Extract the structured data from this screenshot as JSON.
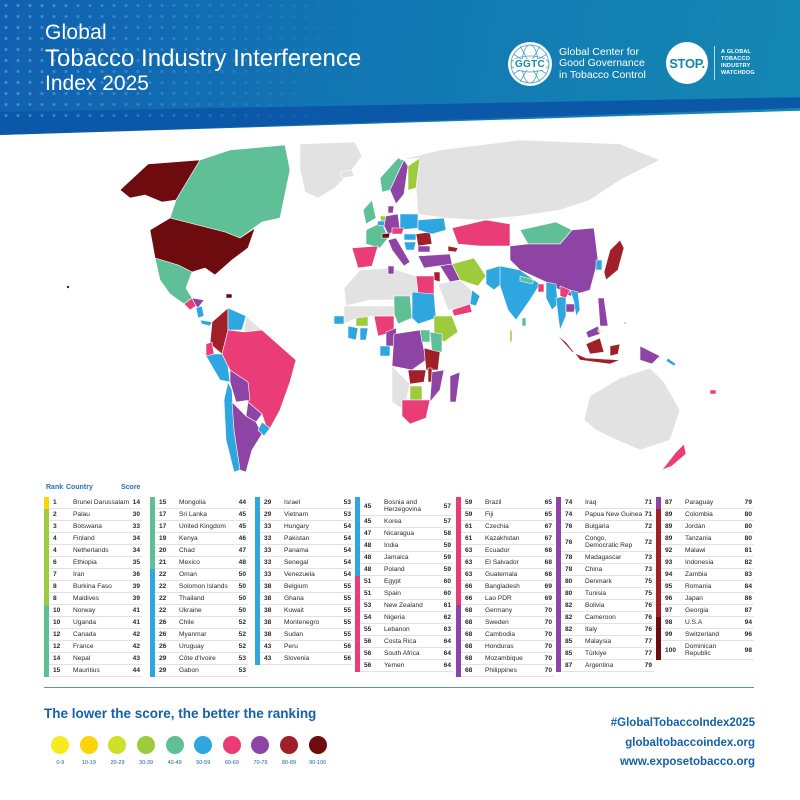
{
  "header": {
    "title_line1": "Global",
    "title_line2": "Tobacco Industry Interference",
    "title_line3": "Index 2025",
    "ggtc": {
      "logo_text": "GGTC",
      "name_line1": "Global Center for",
      "name_line2": "Good Governance",
      "name_line3": "in Tobacco Control"
    },
    "stop": {
      "logo_text": "STOP.",
      "tagline_line1": "A GLOBAL",
      "tagline_line2": "TOBACCO",
      "tagline_line3": "INDUSTRY",
      "tagline_line4": "WATCHDOG"
    }
  },
  "colors": {
    "0-9": "#f7ea1f",
    "10-19": "#fdd30a",
    "20-29": "#cde02a",
    "30-39": "#9ccb3b",
    "40-49": "#5fbf97",
    "50-59": "#2ea6e0",
    "60-69": "#ea3d78",
    "70-79": "#8e44a4",
    "80-89": "#a11f28",
    "90-100": "#6e0b0e",
    "no_data": "#e2e2e2"
  },
  "table": {
    "headers": {
      "rank": "Rank",
      "country": "Country",
      "score": "Score"
    },
    "columns": [
      [
        {
          "rank": "1",
          "country": "Brunei Darussalam",
          "score": "14",
          "band": "10-19"
        },
        {
          "rank": "2",
          "country": "Palau",
          "score": "30",
          "band": "30-39"
        },
        {
          "rank": "3",
          "country": "Botswana",
          "score": "33",
          "band": "30-39"
        },
        {
          "rank": "4",
          "country": "Finland",
          "score": "34",
          "band": "30-39"
        },
        {
          "rank": "4",
          "country": "Netherlands",
          "score": "34",
          "band": "30-39"
        },
        {
          "rank": "6",
          "country": "Ethiopia",
          "score": "35",
          "band": "30-39"
        },
        {
          "rank": "7",
          "country": "Iran",
          "score": "36",
          "band": "30-39"
        },
        {
          "rank": "8",
          "country": "Burkina Faso",
          "score": "39",
          "band": "30-39"
        },
        {
          "rank": "8",
          "country": "Maldives",
          "score": "39",
          "band": "30-39"
        },
        {
          "rank": "10",
          "country": "Norway",
          "score": "41",
          "band": "40-49"
        },
        {
          "rank": "10",
          "country": "Uganda",
          "score": "41",
          "band": "40-49"
        },
        {
          "rank": "12",
          "country": "Canada",
          "score": "42",
          "band": "40-49"
        },
        {
          "rank": "12",
          "country": "France",
          "score": "42",
          "band": "40-49"
        },
        {
          "rank": "14",
          "country": "Nepal",
          "score": "43",
          "band": "40-49"
        },
        {
          "rank": "15",
          "country": "Mauritius",
          "score": "44",
          "band": "40-49"
        }
      ],
      [
        {
          "rank": "15",
          "country": "Mongolia",
          "score": "44",
          "band": "40-49"
        },
        {
          "rank": "17",
          "country": "Sri Lanka",
          "score": "45",
          "band": "40-49"
        },
        {
          "rank": "17",
          "country": "United Kingdom",
          "score": "45",
          "band": "40-49"
        },
        {
          "rank": "19",
          "country": "Kenya",
          "score": "46",
          "band": "40-49"
        },
        {
          "rank": "20",
          "country": "Chad",
          "score": "47",
          "band": "40-49"
        },
        {
          "rank": "21",
          "country": "Mexico",
          "score": "48",
          "band": "40-49"
        },
        {
          "rank": "22",
          "country": "Oman",
          "score": "50",
          "band": "50-59"
        },
        {
          "rank": "22",
          "country": "Solomon Islands",
          "score": "50",
          "band": "50-59"
        },
        {
          "rank": "22",
          "country": "Thailand",
          "score": "50",
          "band": "50-59"
        },
        {
          "rank": "22",
          "country": "Ukraine",
          "score": "50",
          "band": "50-59"
        },
        {
          "rank": "26",
          "country": "Chile",
          "score": "52",
          "band": "50-59"
        },
        {
          "rank": "26",
          "country": "Myanmar",
          "score": "52",
          "band": "50-59"
        },
        {
          "rank": "26",
          "country": "Uruguay",
          "score": "52",
          "band": "50-59"
        },
        {
          "rank": "29",
          "country": "Côte d'Ivoire",
          "score": "53",
          "band": "50-59"
        },
        {
          "rank": "29",
          "country": "Gabon",
          "score": "53",
          "band": "50-59"
        }
      ],
      [
        {
          "rank": "29",
          "country": "Israel",
          "score": "53",
          "band": "50-59"
        },
        {
          "rank": "29",
          "country": "Vietnam",
          "score": "53",
          "band": "50-59"
        },
        {
          "rank": "33",
          "country": "Hungary",
          "score": "54",
          "band": "50-59"
        },
        {
          "rank": "33",
          "country": "Pakistan",
          "score": "54",
          "band": "50-59"
        },
        {
          "rank": "33",
          "country": "Panama",
          "score": "54",
          "band": "50-59"
        },
        {
          "rank": "33",
          "country": "Senegal",
          "score": "54",
          "band": "50-59"
        },
        {
          "rank": "33",
          "country": "Venezuela",
          "score": "54",
          "band": "50-59"
        },
        {
          "rank": "38",
          "country": "Belgium",
          "score": "55",
          "band": "50-59"
        },
        {
          "rank": "38",
          "country": "Ghana",
          "score": "55",
          "band": "50-59"
        },
        {
          "rank": "38",
          "country": "Kuwait",
          "score": "55",
          "band": "50-59"
        },
        {
          "rank": "38",
          "country": "Montenegro",
          "score": "55",
          "band": "50-59"
        },
        {
          "rank": "38",
          "country": "Sudan",
          "score": "55",
          "band": "50-59"
        },
        {
          "rank": "43",
          "country": "Peru",
          "score": "56",
          "band": "50-59"
        },
        {
          "rank": "43",
          "country": "Slovenia",
          "score": "56",
          "band": "50-59"
        }
      ],
      [
        {
          "rank": "45",
          "country": "Bosnia and Herzegovina",
          "score": "57",
          "band": "50-59",
          "tall": true
        },
        {
          "rank": "45",
          "country": "Korea",
          "score": "57",
          "band": "50-59"
        },
        {
          "rank": "47",
          "country": "Nicaragua",
          "score": "58",
          "band": "50-59"
        },
        {
          "rank": "48",
          "country": "India",
          "score": "59",
          "band": "50-59"
        },
        {
          "rank": "48",
          "country": "Jamaica",
          "score": "59",
          "band": "50-59"
        },
        {
          "rank": "48",
          "country": "Poland",
          "score": "59",
          "band": "50-59"
        },
        {
          "rank": "51",
          "country": "Egypt",
          "score": "60",
          "band": "60-69"
        },
        {
          "rank": "51",
          "country": "Spain",
          "score": "60",
          "band": "60-69"
        },
        {
          "rank": "53",
          "country": "New Zealand",
          "score": "61",
          "band": "60-69"
        },
        {
          "rank": "54",
          "country": "Nigeria",
          "score": "62",
          "band": "60-69"
        },
        {
          "rank": "55",
          "country": "Lebanon",
          "score": "63",
          "band": "60-69"
        },
        {
          "rank": "56",
          "country": "Costa Rica",
          "score": "64",
          "band": "60-69"
        },
        {
          "rank": "56",
          "country": "South Africa",
          "score": "64",
          "band": "60-69"
        },
        {
          "rank": "56",
          "country": "Yemen",
          "score": "64",
          "band": "60-69"
        }
      ],
      [
        {
          "rank": "59",
          "country": "Brazil",
          "score": "65",
          "band": "60-69"
        },
        {
          "rank": "59",
          "country": "Fiji",
          "score": "65",
          "band": "60-69"
        },
        {
          "rank": "61",
          "country": "Czechia",
          "score": "67",
          "band": "60-69"
        },
        {
          "rank": "61",
          "country": "Kazakhstan",
          "score": "67",
          "band": "60-69"
        },
        {
          "rank": "63",
          "country": "Ecuador",
          "score": "68",
          "band": "60-69"
        },
        {
          "rank": "63",
          "country": "El Salvador",
          "score": "68",
          "band": "60-69"
        },
        {
          "rank": "63",
          "country": "Guatemala",
          "score": "68",
          "band": "60-69"
        },
        {
          "rank": "66",
          "country": "Bangladesh",
          "score": "69",
          "band": "60-69"
        },
        {
          "rank": "66",
          "country": "Lao PDR",
          "score": "69",
          "band": "60-69"
        },
        {
          "rank": "68",
          "country": "Germany",
          "score": "70",
          "band": "70-79"
        },
        {
          "rank": "68",
          "country": "Sweden",
          "score": "70",
          "band": "70-79"
        },
        {
          "rank": "68",
          "country": "Cambodia",
          "score": "70",
          "band": "70-79"
        },
        {
          "rank": "68",
          "country": "Honduras",
          "score": "70",
          "band": "70-79"
        },
        {
          "rank": "68",
          "country": "Mozambique",
          "score": "70",
          "band": "70-79"
        },
        {
          "rank": "68",
          "country": "Philippines",
          "score": "70",
          "band": "70-79"
        }
      ],
      [
        {
          "rank": "74",
          "country": "Iraq",
          "score": "71",
          "band": "70-79"
        },
        {
          "rank": "74",
          "country": "Papua New Guinea",
          "score": "71",
          "band": "70-79"
        },
        {
          "rank": "76",
          "country": "Bulgaria",
          "score": "72",
          "band": "70-79"
        },
        {
          "rank": "76",
          "country": "Congo, Democratic Rep",
          "score": "72",
          "band": "70-79",
          "tall": true
        },
        {
          "rank": "78",
          "country": "Madagascar",
          "score": "73",
          "band": "70-79"
        },
        {
          "rank": "78",
          "country": "China",
          "score": "73",
          "band": "70-79"
        },
        {
          "rank": "80",
          "country": "Denmark",
          "score": "75",
          "band": "70-79"
        },
        {
          "rank": "80",
          "country": "Tunisia",
          "score": "75",
          "band": "70-79"
        },
        {
          "rank": "82",
          "country": "Bolivia",
          "score": "76",
          "band": "70-79"
        },
        {
          "rank": "82",
          "country": "Cameroon",
          "score": "76",
          "band": "70-79"
        },
        {
          "rank": "82",
          "country": "Italy",
          "score": "76",
          "band": "70-79"
        },
        {
          "rank": "85",
          "country": "Malaysia",
          "score": "77",
          "band": "70-79"
        },
        {
          "rank": "85",
          "country": "Türkiye",
          "score": "77",
          "band": "70-79"
        },
        {
          "rank": "87",
          "country": "Argentina",
          "score": "79",
          "band": "70-79"
        }
      ],
      [
        {
          "rank": "87",
          "country": "Paraguay",
          "score": "79",
          "band": "70-79"
        },
        {
          "rank": "89",
          "country": "Colombia",
          "score": "80",
          "band": "80-89"
        },
        {
          "rank": "89",
          "country": "Jordan",
          "score": "80",
          "band": "80-89"
        },
        {
          "rank": "89",
          "country": "Tanzania",
          "score": "80",
          "band": "80-89"
        },
        {
          "rank": "92",
          "country": "Malawi",
          "score": "81",
          "band": "80-89"
        },
        {
          "rank": "93",
          "country": "Indonesia",
          "score": "82",
          "band": "80-89"
        },
        {
          "rank": "94",
          "country": "Zambia",
          "score": "83",
          "band": "80-89"
        },
        {
          "rank": "95",
          "country": "Romania",
          "score": "84",
          "band": "80-89"
        },
        {
          "rank": "96",
          "country": "Japan",
          "score": "86",
          "band": "80-89"
        },
        {
          "rank": "97",
          "country": "Georgia",
          "score": "87",
          "band": "80-89"
        },
        {
          "rank": "98",
          "country": "U.S.A",
          "score": "94",
          "band": "90-100"
        },
        {
          "rank": "99",
          "country": "Switzerland",
          "score": "96",
          "band": "90-100"
        },
        {
          "rank": "100",
          "country": "Dominican Republic",
          "score": "98",
          "band": "90-100",
          "tall": true
        }
      ]
    ]
  },
  "footer": {
    "tagline": "The lower the score, the better the ranking",
    "legend": [
      {
        "label": "0-9",
        "color": "#f7ea1f"
      },
      {
        "label": "10-19",
        "color": "#fdd30a"
      },
      {
        "label": "20-29",
        "color": "#cde02a"
      },
      {
        "label": "30-39",
        "color": "#9ccb3b"
      },
      {
        "label": "40-49",
        "color": "#5fbf97"
      },
      {
        "label": "50-59",
        "color": "#2ea6e0"
      },
      {
        "label": "60-69",
        "color": "#ea3d78"
      },
      {
        "label": "70-79",
        "color": "#8e44a4"
      },
      {
        "label": "80-89",
        "color": "#a11f28"
      },
      {
        "label": "90-100",
        "color": "#6e0b0e"
      }
    ],
    "hashtag": "#GlobalTobaccoIndex2025",
    "link1": "globaltobaccoindex.org",
    "link2": "www.exposetobacco.org"
  }
}
